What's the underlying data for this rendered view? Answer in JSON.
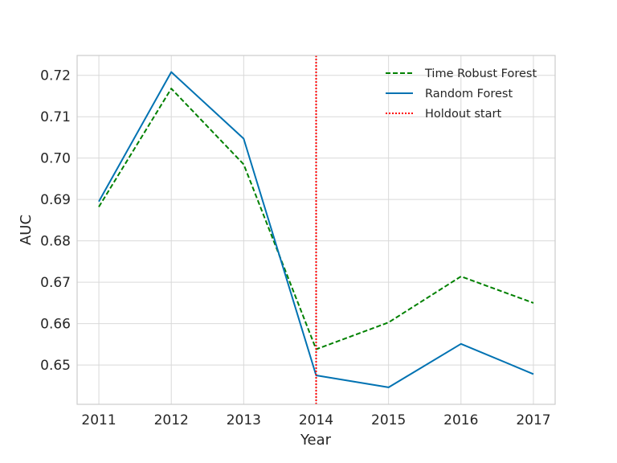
{
  "chart_data": {
    "type": "line",
    "title": "",
    "xlabel": "Year",
    "ylabel": "AUC",
    "x": [
      2011,
      2012,
      2013,
      2014,
      2015,
      2016,
      2017
    ],
    "xlim": [
      2010.7,
      2017.3
    ],
    "ylim": [
      0.6405,
      0.7248
    ],
    "yticks": [
      0.65,
      0.66,
      0.67,
      0.68,
      0.69,
      0.7,
      0.71,
      0.72
    ],
    "ytick_labels": [
      "0.65",
      "0.66",
      "0.67",
      "0.68",
      "0.69",
      "0.70",
      "0.71",
      "0.72"
    ],
    "xtick_labels": [
      "2011",
      "2012",
      "2013",
      "2014",
      "2015",
      "2016",
      "2017"
    ],
    "grid": true,
    "legend_position": "top-right",
    "series": [
      {
        "name": "Time Robust Forest",
        "color": "#008000",
        "style": "dashed",
        "values": [
          0.6882,
          0.7168,
          0.6985,
          0.6538,
          0.6603,
          0.6714,
          0.665
        ]
      },
      {
        "name": "Random Forest",
        "color": "#0072b2",
        "style": "solid",
        "values": [
          0.6895,
          0.7208,
          0.7047,
          0.6475,
          0.6446,
          0.6551,
          0.6478
        ]
      }
    ],
    "vlines": [
      {
        "name": "Holdout start",
        "x": 2014,
        "color": "#ff0000",
        "style": "dotted"
      }
    ]
  }
}
